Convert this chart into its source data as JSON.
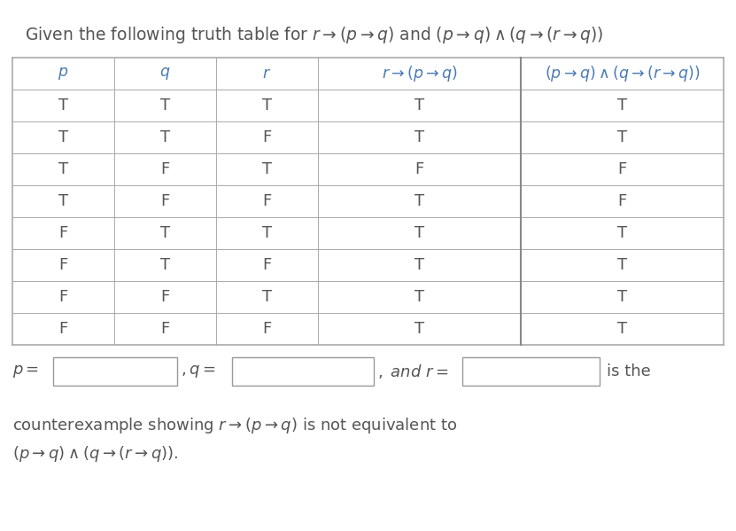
{
  "title": "Given the following truth table for $r \\rightarrow (p \\rightarrow q)$ and $(p \\rightarrow q) \\wedge (q \\rightarrow (r \\rightarrow q))$",
  "col_headers": [
    "$p$",
    "$q$",
    "$r$",
    "$r \\rightarrow (p \\rightarrow q)$",
    "$(p \\rightarrow q) \\wedge (q \\rightarrow (r \\rightarrow q))$"
  ],
  "rows": [
    [
      "T",
      "T",
      "T",
      "T",
      "T"
    ],
    [
      "T",
      "T",
      "F",
      "T",
      "T"
    ],
    [
      "T",
      "F",
      "T",
      "F",
      "F"
    ],
    [
      "T",
      "F",
      "F",
      "T",
      "F"
    ],
    [
      "F",
      "T",
      "T",
      "T",
      "T"
    ],
    [
      "F",
      "T",
      "F",
      "T",
      "T"
    ],
    [
      "F",
      "F",
      "T",
      "T",
      "T"
    ],
    [
      "F",
      "F",
      "F",
      "T",
      "T"
    ]
  ],
  "footer_line1": "counterexample showing $r \\rightarrow (p \\rightarrow q)$ is not equivalent to",
  "footer_line2": "$(p \\rightarrow q) \\wedge (q \\rightarrow (r \\rightarrow q))$.",
  "bg_color": "#ffffff",
  "table_line_color": "#bbbbbb",
  "text_color": "#555555",
  "header_text_color": "#4a7ab5",
  "title_fontsize": 13.5,
  "header_fontsize": 12.5,
  "cell_fontsize": 13,
  "footer_fontsize": 13
}
